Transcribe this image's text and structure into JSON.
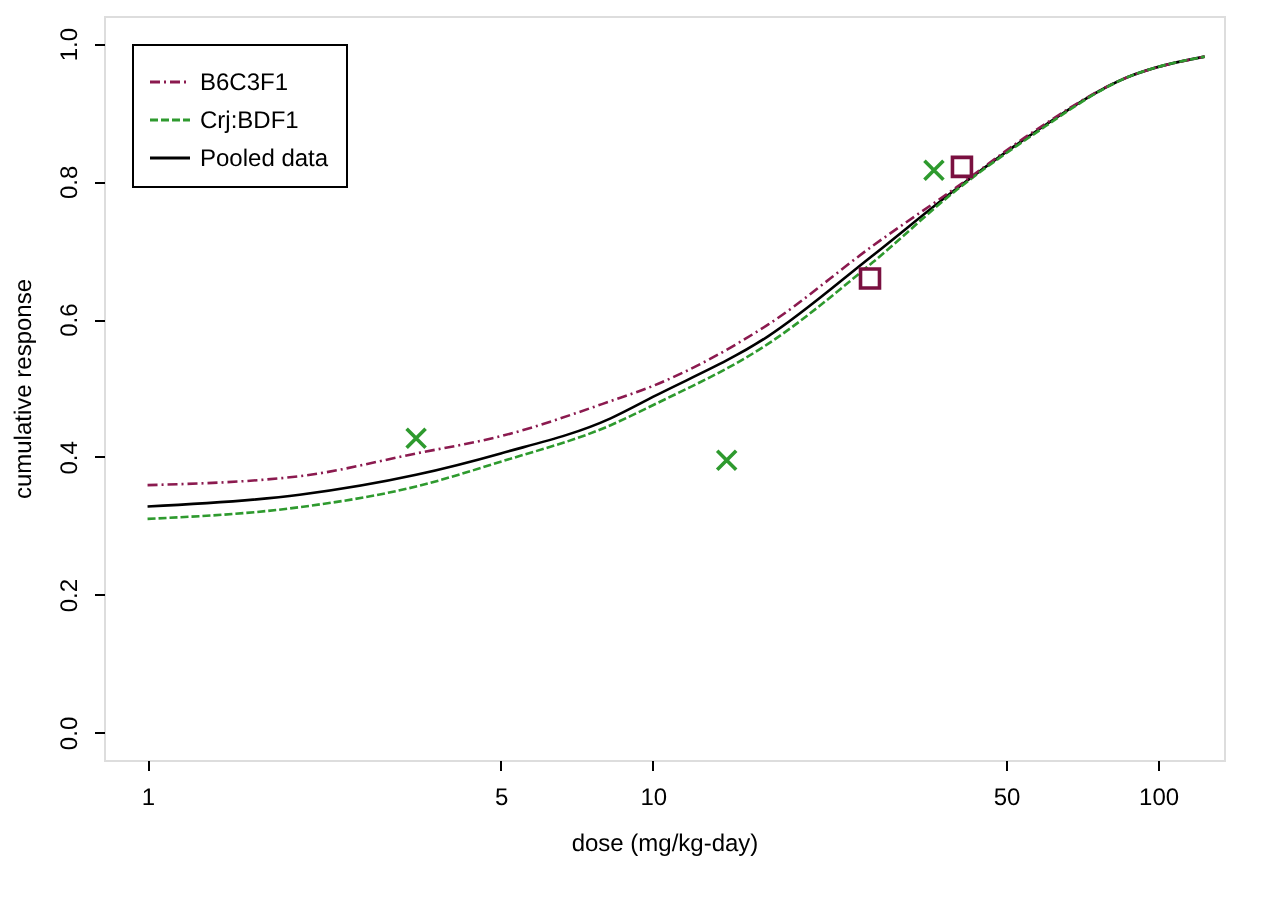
{
  "chart_data": {
    "type": "line",
    "xlabel": "dose (mg/kg-day)",
    "ylabel": "cumulative response",
    "log": "x",
    "xlim": [
      0.82,
      135
    ],
    "xticks": [
      1,
      5,
      10,
      50,
      100
    ],
    "ylim": [
      -0.04,
      1.04
    ],
    "yticks": [
      {
        "value": 0,
        "label": "0.0"
      },
      0.2,
      0.4,
      0.6,
      0.8,
      {
        "value": 1,
        "label": "1.0"
      }
    ],
    "grid": false,
    "legend": "top left",
    "series": [
      {
        "name": "B6C3F1",
        "color": "#8b1a4f",
        "line_style": "dashdot",
        "marker": "none",
        "x": [
          1,
          2,
          3.4,
          5,
          8.25,
          10,
          16.9,
          27.2,
          40,
          55.6,
          86.9,
          123.6
        ],
        "values": [
          0.359,
          0.372,
          0.405,
          0.43,
          0.481,
          0.503,
          0.592,
          0.706,
          0.792,
          0.868,
          0.951,
          0.981
        ]
      },
      {
        "name": "Crj:BDF1",
        "color": "#2e9a2e",
        "line_style": "dashed",
        "marker": "none",
        "x": [
          1,
          2,
          3.4,
          5,
          8.25,
          10,
          16.9,
          27.2,
          40,
          55.6,
          86.9,
          123.6
        ],
        "values": [
          0.31,
          0.327,
          0.357,
          0.393,
          0.446,
          0.475,
          0.564,
          0.682,
          0.788,
          0.864,
          0.951,
          0.981
        ]
      },
      {
        "name": "Pooled data",
        "color": "#000000",
        "line_style": "solid",
        "marker": "none",
        "x": [
          1,
          2,
          3.4,
          5,
          8.25,
          10,
          16.9,
          27.2,
          40,
          55.6,
          86.9,
          123.6
        ],
        "values": [
          0.328,
          0.345,
          0.374,
          0.405,
          0.456,
          0.487,
          0.575,
          0.692,
          0.79,
          0.866,
          0.951,
          0.981
        ]
      },
      {
        "type": "scatter",
        "color": "#2e9a2e",
        "marker": "cross",
        "x": [
          3.4,
          14,
          36
        ],
        "values": [
          0.427,
          0.395,
          0.816
        ]
      },
      {
        "type": "scatter",
        "color": "#7a1040",
        "marker": "square",
        "x": [
          26.9,
          40.9
        ],
        "values": [
          0.659,
          0.821
        ]
      }
    ]
  }
}
